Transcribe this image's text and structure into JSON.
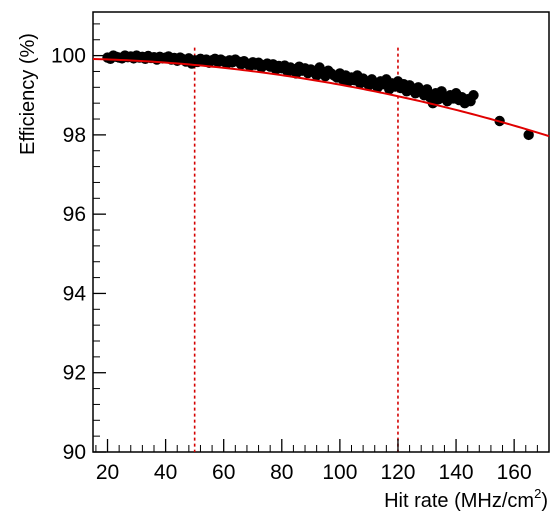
{
  "chart_data": {
    "type": "scatter",
    "title": "",
    "xlabel": "Hit rate (MHz/cm",
    "xlabel_sup": "2",
    "xlabel_close": ")",
    "ylabel": "Efficiency (%)",
    "xlim": [
      15,
      172
    ],
    "ylim": [
      90,
      101.1
    ],
    "x_ticks": [
      20,
      40,
      60,
      80,
      100,
      120,
      140,
      160
    ],
    "y_ticks": [
      90,
      92,
      94,
      96,
      98,
      100
    ],
    "grid": false,
    "legend": "none",
    "colors": {
      "points": "#000000",
      "fit": "#e00000",
      "reference_lines": "#d40000",
      "axis": "#000000"
    },
    "series": [
      {
        "points": [
          [
            20,
            99.95
          ],
          [
            21,
            99.92
          ],
          [
            22,
            100.0
          ],
          [
            23,
            99.97
          ],
          [
            24,
            99.95
          ],
          [
            25,
            99.93
          ],
          [
            26,
            100.0
          ],
          [
            27,
            99.96
          ],
          [
            28,
            99.98
          ],
          [
            29,
            99.93
          ],
          [
            30,
            100.0
          ],
          [
            31,
            99.95
          ],
          [
            32,
            99.97
          ],
          [
            33,
            99.92
          ],
          [
            34,
            99.99
          ],
          [
            35,
            99.94
          ],
          [
            36,
            99.96
          ],
          [
            37,
            99.9
          ],
          [
            38,
            99.97
          ],
          [
            39,
            99.93
          ],
          [
            40,
            99.95
          ],
          [
            41,
            99.98
          ],
          [
            42,
            99.9
          ],
          [
            43,
            99.94
          ],
          [
            44,
            99.87
          ],
          [
            45,
            99.95
          ],
          [
            46,
            99.91
          ],
          [
            47,
            99.85
          ],
          [
            48,
            99.93
          ],
          [
            49,
            99.8
          ],
          [
            50,
            99.88
          ],
          [
            51,
            99.84
          ],
          [
            52,
            99.92
          ],
          [
            53,
            99.86
          ],
          [
            54,
            99.9
          ],
          [
            55,
            99.82
          ],
          [
            56,
            99.88
          ],
          [
            57,
            99.92
          ],
          [
            58,
            99.84
          ],
          [
            59,
            99.9
          ],
          [
            60,
            99.86
          ],
          [
            61,
            99.8
          ],
          [
            62,
            99.88
          ],
          [
            63,
            99.83
          ],
          [
            64,
            99.9
          ],
          [
            65,
            99.85
          ],
          [
            66,
            99.78
          ],
          [
            67,
            99.86
          ],
          [
            68,
            99.8
          ],
          [
            69,
            99.74
          ],
          [
            70,
            99.83
          ],
          [
            71,
            99.77
          ],
          [
            72,
            99.82
          ],
          [
            73,
            99.7
          ],
          [
            74,
            99.76
          ],
          [
            75,
            99.8
          ],
          [
            76,
            99.72
          ],
          [
            77,
            99.78
          ],
          [
            78,
            99.65
          ],
          [
            79,
            99.74
          ],
          [
            80,
            99.68
          ],
          [
            81,
            99.75
          ],
          [
            82,
            99.6
          ],
          [
            83,
            99.7
          ],
          [
            84,
            99.66
          ],
          [
            85,
            99.55
          ],
          [
            86,
            99.72
          ],
          [
            87,
            99.62
          ],
          [
            88,
            99.68
          ],
          [
            89,
            99.56
          ],
          [
            90,
            99.65
          ],
          [
            91,
            99.6
          ],
          [
            92,
            99.5
          ],
          [
            93,
            99.7
          ],
          [
            94,
            99.58
          ],
          [
            95,
            99.48
          ],
          [
            96,
            99.62
          ],
          [
            97,
            99.55
          ],
          [
            98,
            99.5
          ],
          [
            99,
            99.45
          ],
          [
            100,
            99.55
          ],
          [
            101,
            99.4
          ],
          [
            102,
            99.5
          ],
          [
            103,
            99.35
          ],
          [
            104,
            99.45
          ],
          [
            105,
            99.38
          ],
          [
            106,
            99.5
          ],
          [
            107,
            99.3
          ],
          [
            108,
            99.42
          ],
          [
            109,
            99.35
          ],
          [
            110,
            99.25
          ],
          [
            111,
            99.4
          ],
          [
            112,
            99.3
          ],
          [
            113,
            99.2
          ],
          [
            114,
            99.35
          ],
          [
            115,
            99.28
          ],
          [
            116,
            99.4
          ],
          [
            117,
            99.15
          ],
          [
            118,
            99.3
          ],
          [
            119,
            99.22
          ],
          [
            120,
            99.35
          ],
          [
            121,
            99.18
          ],
          [
            122,
            99.28
          ],
          [
            123,
            99.1
          ],
          [
            124,
            99.25
          ],
          [
            125,
            99.15
          ],
          [
            126,
            99.05
          ],
          [
            127,
            99.2
          ],
          [
            128,
            99.1
          ],
          [
            129,
            99.0
          ],
          [
            130,
            99.15
          ],
          [
            131,
            98.95
          ],
          [
            132,
            98.8
          ],
          [
            133,
            99.05
          ],
          [
            134,
            98.9
          ],
          [
            135,
            99.1
          ],
          [
            136,
            98.95
          ],
          [
            137,
            98.85
          ],
          [
            138,
            99.0
          ],
          [
            139,
            98.92
          ],
          [
            140,
            99.05
          ],
          [
            141,
            98.88
          ],
          [
            142,
            98.95
          ],
          [
            143,
            98.8
          ],
          [
            144,
            98.9
          ],
          [
            145,
            98.85
          ],
          [
            146,
            99.0
          ],
          [
            155,
            98.35
          ],
          [
            165,
            98.0
          ]
        ]
      }
    ],
    "fit_curve": {
      "a": 99.93,
      "b": -6.63e-05,
      "x_from": 15,
      "x_to": 172
    },
    "reference_lines_x": [
      50,
      120
    ]
  }
}
